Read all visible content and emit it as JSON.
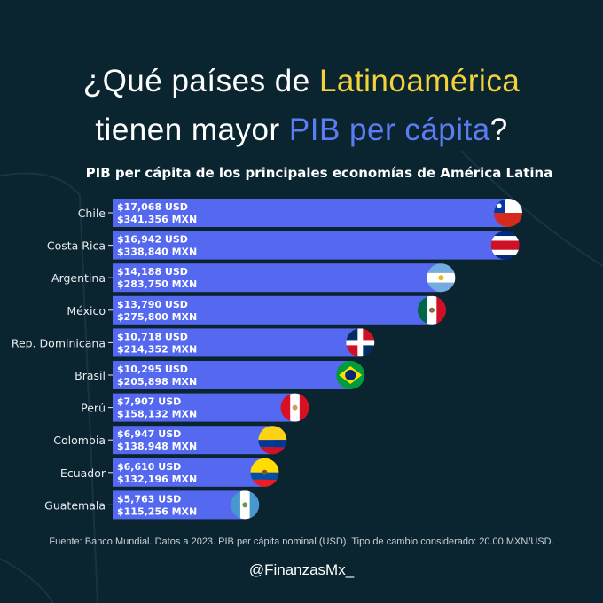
{
  "title": {
    "line1_a": "¿Qué países de ",
    "line1_b": "Latinoamérica",
    "line2_a": "tienen mayor ",
    "line2_b": "PIB per cápita",
    "line2_c": "?"
  },
  "colors": {
    "background": "#0b2530",
    "bar": "#5468f0",
    "highlight_yellow": "#f4d23c",
    "highlight_blue": "#5b7cf2"
  },
  "chart_data": {
    "type": "bar",
    "orientation": "horizontal",
    "title": "PIB per cápita de los principales economías de América Latina",
    "categories": [
      "Chile",
      "Costa Rica",
      "Argentina",
      "México",
      "Rep. Dominicana",
      "Brasil",
      "Perú",
      "Colombia",
      "Ecuador",
      "Guatemala"
    ],
    "values": [
      17068,
      16942,
      14188,
      13790,
      10718,
      10295,
      7907,
      6947,
      6610,
      5763
    ],
    "labels_usd": [
      "$17,068 USD",
      "$16,942 USD",
      "$14,188 USD",
      "$13,790 USD",
      "$10,718 USD",
      "$10,295 USD",
      "$7,907 USD",
      "$6,947 USD",
      "$6,610 USD",
      "$5,763 USD"
    ],
    "labels_mxn": [
      "$341,356 MXN",
      "$338,840 MXN",
      "$283,750 MXN",
      "$275,800 MXN",
      "$214,352 MXN",
      "$205,898 MXN",
      "$158,132 MXN",
      "$138,948 MXN",
      "$132,196 MXN",
      "$115,256 MXN"
    ],
    "flags": [
      "chile-flag",
      "costa-rica-flag",
      "argentina-flag",
      "mexico-flag",
      "dominican-republic-flag",
      "brazil-flag",
      "peru-flag",
      "colombia-flag",
      "ecuador-flag",
      "guatemala-flag"
    ],
    "xlim": [
      0,
      17068
    ],
    "grid": false,
    "legend": "none"
  },
  "source": "Fuente: Banco Mundial. Datos a 2023. PIB per cápita nominal (USD). Tipo de cambio considerado: 20.00 MXN/USD.",
  "handle": "@FinanzasMx_"
}
